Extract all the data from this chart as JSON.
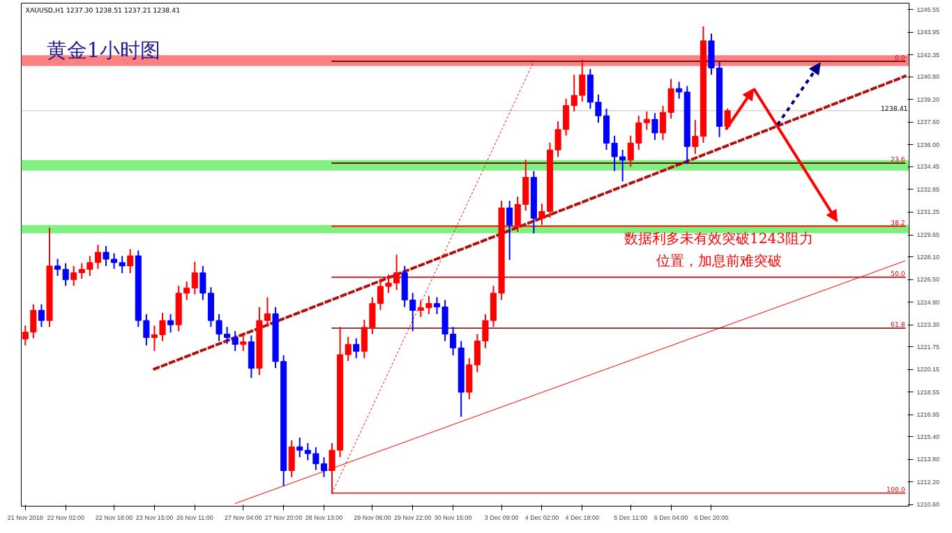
{
  "chart_data": {
    "type": "candlestick",
    "title": "黄金1小时图",
    "annotations": [
      "XAUUSD,H1  1237.30 1238.51 1237.21 1238.41",
      "数据利多未有效突破1243阻力",
      "位置，加息前难突破"
    ],
    "categories": [
      "21 Nov 2018",
      null,
      null,
      null,
      null,
      "22 Nov 02:00",
      null,
      null,
      null,
      null,
      null,
      "22 Nov 18:00",
      null,
      null,
      null,
      null,
      "23 Nov 15:00",
      null,
      null,
      null,
      null,
      "26 Nov 11:00",
      null,
      null,
      null,
      null,
      null,
      "27 Nov 04:00",
      null,
      null,
      null,
      null,
      "27 Nov 20:00",
      null,
      null,
      null,
      null,
      "28 Nov 13:00",
      null,
      null,
      null,
      null,
      null,
      "29 Nov 06:00",
      null,
      null,
      null,
      null,
      "29 Nov 22:00",
      null,
      null,
      null,
      null,
      "30 Nov 15:00",
      null,
      null,
      null,
      null,
      null,
      "3 Dec 09:00",
      null,
      null,
      null,
      null,
      "4 Dec 02:00",
      null,
      null,
      null,
      null,
      "4 Dec 18:00",
      null,
      null,
      null,
      null,
      null,
      "5 Dec 11:00",
      null,
      null,
      null,
      null,
      "6 Dec 04:00",
      null,
      null,
      null,
      null,
      "6 Dec 20:00",
      null,
      null,
      null,
      null,
      null,
      null,
      null,
      null,
      null,
      null,
      null,
      null,
      null,
      null,
      null,
      null,
      null,
      null,
      null,
      null,
      null,
      null,
      null,
      null
    ],
    "ohlc": [
      [
        1222.3,
        1223.2,
        1221.9,
        1222.78
      ],
      [
        1222.78,
        1224.7,
        1222.4,
        1224.32
      ],
      [
        1224.32,
        1224.7,
        1223.2,
        1223.6
      ],
      [
        1223.6,
        1230.1,
        1223.2,
        1227.45
      ],
      [
        1227.45,
        1227.9,
        1226.8,
        1227.21
      ],
      [
        1227.21,
        1227.6,
        1226.1,
        1226.49
      ],
      [
        1226.49,
        1227.4,
        1226.1,
        1226.97
      ],
      [
        1226.97,
        1227.6,
        1226.6,
        1227.21
      ],
      [
        1227.21,
        1228.1,
        1226.8,
        1227.69
      ],
      [
        1227.69,
        1228.9,
        1227.3,
        1228.42
      ],
      [
        1228.42,
        1228.8,
        1227.5,
        1227.93
      ],
      [
        1227.93,
        1228.3,
        1227.3,
        1227.69
      ],
      [
        1227.69,
        1228.1,
        1227.0,
        1227.45
      ],
      [
        1227.45,
        1228.6,
        1227.0,
        1228.17
      ],
      [
        1228.17,
        1228.5,
        1223.2,
        1223.6
      ],
      [
        1223.6,
        1224.0,
        1221.9,
        1222.4
      ],
      [
        1222.4,
        1223.2,
        1221.5,
        1222.6
      ],
      [
        1222.6,
        1224.1,
        1222.2,
        1223.6
      ],
      [
        1223.6,
        1224.0,
        1222.8,
        1223.3
      ],
      [
        1223.3,
        1226.0,
        1222.9,
        1225.53
      ],
      [
        1225.53,
        1226.3,
        1225.1,
        1225.9
      ],
      [
        1225.9,
        1227.7,
        1225.5,
        1226.97
      ],
      [
        1226.97,
        1227.4,
        1225.1,
        1225.53
      ],
      [
        1225.53,
        1225.9,
        1223.2,
        1223.6
      ],
      [
        1223.6,
        1224.0,
        1222.2,
        1222.64
      ],
      [
        1222.64,
        1223.1,
        1222.0,
        1222.4
      ],
      [
        1222.4,
        1222.8,
        1221.5,
        1221.92
      ],
      [
        1221.92,
        1222.6,
        1221.5,
        1222.1
      ],
      [
        1222.1,
        1222.5,
        1219.6,
        1220.23
      ],
      [
        1220.23,
        1224.5,
        1219.8,
        1223.6
      ],
      [
        1223.6,
        1225.2,
        1223.2,
        1224.08
      ],
      [
        1224.08,
        1224.5,
        1220.3,
        1220.71
      ],
      [
        1220.71,
        1221.1,
        1211.95,
        1213.01
      ],
      [
        1213.01,
        1215.1,
        1212.6,
        1214.69
      ],
      [
        1214.69,
        1215.3,
        1214.0,
        1214.45
      ],
      [
        1214.45,
        1214.9,
        1213.8,
        1214.21
      ],
      [
        1214.21,
        1214.6,
        1213.1,
        1213.49
      ],
      [
        1213.49,
        1213.9,
        1212.6,
        1213.01
      ],
      [
        1213.01,
        1214.9,
        1211.42,
        1214.45
      ],
      [
        1214.45,
        1223.1,
        1214.0,
        1221.19
      ],
      [
        1221.19,
        1222.4,
        1220.8,
        1221.92
      ],
      [
        1221.92,
        1222.3,
        1221.0,
        1221.43
      ],
      [
        1221.43,
        1223.6,
        1221.0,
        1223.12
      ],
      [
        1223.12,
        1225.2,
        1222.7,
        1224.8
      ],
      [
        1224.8,
        1226.5,
        1224.4,
        1226.01
      ],
      [
        1226.01,
        1226.8,
        1225.6,
        1226.25
      ],
      [
        1226.25,
        1228.2,
        1225.8,
        1226.97
      ],
      [
        1226.97,
        1227.4,
        1224.6,
        1225.05
      ],
      [
        1225.05,
        1225.5,
        1222.9,
        1224.32
      ],
      [
        1224.32,
        1225.0,
        1223.9,
        1224.5
      ],
      [
        1224.5,
        1225.3,
        1224.1,
        1224.8
      ],
      [
        1224.8,
        1225.2,
        1224.1,
        1224.56
      ],
      [
        1224.56,
        1225.0,
        1222.2,
        1222.64
      ],
      [
        1222.64,
        1223.1,
        1221.2,
        1221.67
      ],
      [
        1221.67,
        1222.1,
        1216.86,
        1218.54
      ],
      [
        1218.54,
        1220.9,
        1218.1,
        1220.47
      ],
      [
        1220.47,
        1222.6,
        1220.0,
        1222.16
      ],
      [
        1222.16,
        1224.0,
        1221.7,
        1223.6
      ],
      [
        1223.6,
        1226.0,
        1223.2,
        1225.53
      ],
      [
        1225.53,
        1232.0,
        1225.1,
        1231.55
      ],
      [
        1231.55,
        1232.0,
        1227.93,
        1230.34
      ],
      [
        1230.34,
        1232.3,
        1229.9,
        1231.79
      ],
      [
        1231.79,
        1234.9,
        1231.4,
        1233.71
      ],
      [
        1233.71,
        1234.1,
        1229.8,
        1230.82
      ],
      [
        1230.82,
        1231.8,
        1230.4,
        1231.3
      ],
      [
        1231.3,
        1236.1,
        1230.9,
        1235.64
      ],
      [
        1235.64,
        1237.6,
        1235.2,
        1237.08
      ],
      [
        1237.08,
        1239.2,
        1236.7,
        1238.77
      ],
      [
        1238.77,
        1240.9,
        1238.4,
        1239.49
      ],
      [
        1239.49,
        1241.95,
        1239.1,
        1240.93
      ],
      [
        1240.93,
        1241.3,
        1238.6,
        1239.01
      ],
      [
        1239.01,
        1239.5,
        1237.6,
        1238.05
      ],
      [
        1238.05,
        1238.5,
        1235.7,
        1236.12
      ],
      [
        1236.12,
        1236.6,
        1234.2,
        1235.16
      ],
      [
        1235.16,
        1235.6,
        1233.47,
        1234.92
      ],
      [
        1234.92,
        1236.6,
        1234.5,
        1236.12
      ],
      [
        1236.12,
        1238.0,
        1235.7,
        1237.56
      ],
      [
        1237.56,
        1238.3,
        1237.1,
        1237.8
      ],
      [
        1237.8,
        1238.2,
        1236.4,
        1236.84
      ],
      [
        1236.84,
        1238.7,
        1236.4,
        1238.29
      ],
      [
        1238.29,
        1240.6,
        1237.9,
        1239.97
      ],
      [
        1239.97,
        1240.4,
        1239.3,
        1239.73
      ],
      [
        1239.73,
        1240.1,
        1234.7,
        1235.88
      ],
      [
        1235.88,
        1237.7,
        1235.4,
        1236.6
      ],
      [
        1236.6,
        1244.3,
        1236.2,
        1243.34
      ],
      [
        1243.34,
        1243.8,
        1241.0,
        1241.42
      ],
      [
        1241.42,
        1241.8,
        1236.6,
        1237.3
      ],
      [
        1237.3,
        1238.51,
        1237.21,
        1238.41
      ],
      null,
      null,
      null,
      null,
      null,
      null,
      null,
      null,
      null,
      null,
      null,
      null,
      null,
      null,
      null,
      null,
      null,
      null,
      null,
      null,
      null,
      null
    ],
    "colors": [
      "#ff0000",
      "#ff0000",
      "#0000ff",
      "#ff0000",
      "#0000ff",
      "#0000ff",
      "#ff0000",
      "#ff0000",
      "#ff0000",
      "#ff0000",
      "#0000ff",
      "#0000ff",
      "#0000ff",
      "#ff0000",
      "#0000ff",
      "#0000ff",
      "#ff0000",
      "#ff0000",
      "#0000ff",
      "#ff0000",
      "#ff0000",
      "#ff0000",
      "#0000ff",
      "#0000ff",
      "#0000ff",
      "#0000ff",
      "#0000ff",
      "#ff0000",
      "#0000ff",
      "#ff0000",
      "#ff0000",
      "#0000ff",
      "#0000ff",
      "#ff0000",
      "#0000ff",
      "#0000ff",
      "#0000ff",
      "#0000ff",
      "#ff0000",
      "#ff0000",
      "#ff0000",
      "#0000ff",
      "#ff0000",
      "#ff0000",
      "#ff0000",
      "#ff0000",
      "#ff0000",
      "#0000ff",
      "#0000ff",
      "#ff0000",
      "#ff0000",
      "#0000ff",
      "#0000ff",
      "#0000ff",
      "#0000ff",
      "#ff0000",
      "#ff0000",
      "#ff0000",
      "#ff0000",
      "#ff0000",
      "#0000ff",
      "#ff0000",
      "#ff0000",
      "#0000ff",
      "#ff0000",
      "#ff0000",
      "#ff0000",
      "#ff0000",
      "#ff0000",
      "#ff0000",
      "#0000ff",
      "#0000ff",
      "#0000ff",
      "#0000ff",
      "#0000ff",
      "#ff0000",
      "#ff0000",
      "#ff0000",
      "#0000ff",
      "#ff0000",
      "#ff0000",
      "#0000ff",
      "#0000ff",
      "#ff0000",
      "#ff0000",
      "#0000ff",
      "#0000ff",
      "#ff0000",
      null,
      null,
      null,
      null,
      null,
      null,
      null,
      null,
      null,
      null,
      null,
      null,
      null,
      null,
      null,
      null,
      null,
      null,
      null,
      null,
      null,
      null
    ],
    "series": [
      {
        "type": "line",
        "color": "#b01010",
        "line_style": "dashed",
        "values": [
          null,
          null,
          null,
          null,
          null,
          null,
          null,
          null,
          null,
          null,
          null,
          null,
          null,
          null,
          null,
          null,
          1220.18,
          null,
          null,
          null,
          null,
          null,
          null,
          null,
          null,
          null,
          null,
          null,
          null,
          null,
          null,
          null,
          null,
          null,
          null,
          null,
          null,
          null,
          null,
          null,
          null,
          null,
          null,
          null,
          null,
          null,
          null,
          null,
          null,
          null,
          null,
          null,
          null,
          null,
          null,
          null,
          null,
          null,
          null,
          null,
          null,
          null,
          null,
          null,
          null,
          null,
          null,
          null,
          null,
          null,
          null,
          null,
          null,
          null,
          null,
          null,
          null,
          null,
          null,
          null,
          null,
          null,
          null,
          null,
          null,
          null,
          null,
          null,
          null,
          null,
          null,
          null,
          null,
          null,
          null,
          null,
          null,
          null,
          null,
          null,
          null,
          null,
          null,
          null,
          null,
          null,
          null,
          null,
          null,
          1240.84
        ]
      },
      {
        "type": "line",
        "color": "#ff0000",
        "line_style": "solid",
        "values": [
          null,
          null,
          null,
          null,
          null,
          null,
          null,
          null,
          null,
          null,
          null,
          null,
          null,
          null,
          null,
          null,
          null,
          null,
          null,
          null,
          null,
          null,
          null,
          null,
          null,
          null,
          1210.69,
          null,
          null,
          null,
          null,
          null,
          null,
          null,
          null,
          null,
          null,
          null,
          null,
          null,
          null,
          null,
          null,
          null,
          null,
          null,
          null,
          null,
          null,
          null,
          null,
          null,
          null,
          null,
          null,
          null,
          null,
          null,
          null,
          null,
          null,
          null,
          null,
          null,
          null,
          null,
          null,
          null,
          null,
          null,
          null,
          null,
          null,
          null,
          null,
          null,
          null,
          null,
          null,
          null,
          null,
          null,
          null,
          null,
          null,
          null,
          null,
          null,
          null,
          null,
          null,
          null,
          null,
          null,
          null,
          null,
          null,
          null,
          null,
          null,
          null,
          null,
          null,
          null,
          null,
          null,
          null,
          null,
          null,
          1227.81
        ]
      },
      {
        "type": "line",
        "color": "#ff0000",
        "line_style": "dotted",
        "values": [
          null,
          null,
          null,
          null,
          null,
          null,
          null,
          null,
          null,
          null,
          null,
          null,
          null,
          null,
          null,
          null,
          null,
          null,
          null,
          null,
          null,
          null,
          null,
          null,
          null,
          null,
          null,
          null,
          null,
          null,
          null,
          null,
          null,
          null,
          null,
          null,
          null,
          null,
          1211.42,
          null,
          null,
          null,
          null,
          null,
          null,
          null,
          null,
          null,
          null,
          null,
          null,
          null,
          null,
          null,
          null,
          null,
          null,
          null,
          null,
          null,
          null,
          null,
          null,
          1241.9,
          null,
          null,
          null,
          null,
          null,
          null,
          null,
          null,
          null,
          null,
          null,
          null,
          null,
          null,
          null,
          null,
          null,
          null,
          null,
          null,
          null,
          null,
          null,
          null,
          null,
          null,
          null,
          null,
          null,
          null,
          null,
          null,
          null,
          null,
          null,
          null,
          null,
          null,
          null,
          null,
          null,
          null,
          null,
          null,
          null,
          null
        ]
      },
      {
        "type": "line",
        "name": "0.0",
        "color": "#600000",
        "line_style": "solid",
        "values": [
          null,
          null,
          null,
          null,
          null,
          null,
          null,
          null,
          null,
          null,
          null,
          null,
          null,
          null,
          null,
          null,
          null,
          null,
          null,
          null,
          null,
          null,
          null,
          null,
          null,
          null,
          null,
          null,
          null,
          null,
          null,
          null,
          null,
          null,
          null,
          null,
          null,
          null,
          1241.9,
          null,
          null,
          null,
          null,
          null,
          null,
          null,
          null,
          null,
          null,
          null,
          null,
          null,
          null,
          null,
          null,
          null,
          null,
          null,
          null,
          null,
          null,
          null,
          null,
          null,
          null,
          null,
          null,
          null,
          null,
          null,
          null,
          null,
          null,
          null,
          null,
          null,
          null,
          null,
          null,
          null,
          null,
          null,
          null,
          null,
          null,
          null,
          null,
          null,
          null,
          null,
          null,
          null,
          null,
          null,
          null,
          null,
          null,
          null,
          null,
          null,
          null,
          null,
          null,
          null,
          null,
          null,
          null,
          null,
          null,
          1241.9
        ]
      },
      {
        "type": "line",
        "name": "23.6",
        "color": "#600000",
        "line_style": "solid",
        "values": [
          null,
          null,
          null,
          null,
          null,
          null,
          null,
          null,
          null,
          null,
          null,
          null,
          null,
          null,
          null,
          null,
          null,
          null,
          null,
          null,
          null,
          null,
          null,
          null,
          null,
          null,
          null,
          null,
          null,
          null,
          null,
          null,
          null,
          null,
          null,
          null,
          null,
          null,
          1234.71,
          null,
          null,
          null,
          null,
          null,
          null,
          null,
          null,
          null,
          null,
          null,
          null,
          null,
          null,
          null,
          null,
          null,
          null,
          null,
          null,
          null,
          null,
          null,
          null,
          null,
          null,
          null,
          null,
          null,
          null,
          null,
          null,
          null,
          null,
          null,
          null,
          null,
          null,
          null,
          null,
          null,
          null,
          null,
          null,
          null,
          null,
          null,
          null,
          null,
          null,
          null,
          null,
          null,
          null,
          null,
          null,
          null,
          null,
          null,
          null,
          null,
          null,
          null,
          null,
          null,
          null,
          null,
          null,
          null,
          null,
          1234.71
        ]
      },
      {
        "type": "line",
        "name": "38.2",
        "color": "#ff0000",
        "line_style": "solid",
        "values": [
          null,
          null,
          null,
          null,
          null,
          null,
          null,
          null,
          null,
          null,
          null,
          null,
          null,
          null,
          null,
          null,
          null,
          null,
          null,
          null,
          null,
          null,
          null,
          null,
          null,
          null,
          null,
          null,
          null,
          null,
          null,
          null,
          null,
          null,
          null,
          null,
          null,
          null,
          1230.26,
          null,
          null,
          null,
          null,
          null,
          null,
          null,
          null,
          null,
          null,
          null,
          null,
          null,
          null,
          null,
          null,
          null,
          null,
          null,
          null,
          null,
          null,
          null,
          null,
          null,
          null,
          null,
          null,
          null,
          null,
          null,
          null,
          null,
          null,
          null,
          null,
          null,
          null,
          null,
          null,
          null,
          null,
          null,
          null,
          null,
          null,
          null,
          null,
          null,
          null,
          null,
          null,
          null,
          null,
          null,
          null,
          null,
          null,
          null,
          null,
          null,
          null,
          null,
          null,
          null,
          null,
          null,
          null,
          null,
          null,
          1230.26
        ]
      },
      {
        "type": "line",
        "name": "50.0",
        "color": "#ff0000",
        "line_style": "solid",
        "values": [
          null,
          null,
          null,
          null,
          null,
          null,
          null,
          null,
          null,
          null,
          null,
          null,
          null,
          null,
          null,
          null,
          null,
          null,
          null,
          null,
          null,
          null,
          null,
          null,
          null,
          null,
          null,
          null,
          null,
          null,
          null,
          null,
          null,
          null,
          null,
          null,
          null,
          null,
          1226.66,
          null,
          null,
          null,
          null,
          null,
          null,
          null,
          null,
          null,
          null,
          null,
          null,
          null,
          null,
          null,
          null,
          null,
          null,
          null,
          null,
          null,
          null,
          null,
          null,
          null,
          null,
          null,
          null,
          null,
          null,
          null,
          null,
          null,
          null,
          null,
          null,
          null,
          null,
          null,
          null,
          null,
          null,
          null,
          null,
          null,
          null,
          null,
          null,
          null,
          null,
          null,
          null,
          null,
          null,
          null,
          null,
          null,
          null,
          null,
          null,
          null,
          null,
          null,
          null,
          null,
          null,
          null,
          null,
          null,
          null,
          1226.66
        ]
      },
      {
        "type": "line",
        "name": "61.8",
        "color": "#600000",
        "line_style": "solid",
        "values": [
          null,
          null,
          null,
          null,
          null,
          null,
          null,
          null,
          null,
          null,
          null,
          null,
          null,
          null,
          null,
          null,
          null,
          null,
          null,
          null,
          null,
          null,
          null,
          null,
          null,
          null,
          null,
          null,
          null,
          null,
          null,
          null,
          null,
          null,
          null,
          null,
          null,
          null,
          1223.06,
          null,
          null,
          null,
          null,
          null,
          null,
          null,
          null,
          null,
          null,
          null,
          null,
          null,
          null,
          null,
          null,
          null,
          null,
          null,
          null,
          null,
          null,
          null,
          null,
          null,
          null,
          null,
          null,
          null,
          null,
          null,
          null,
          null,
          null,
          null,
          null,
          null,
          null,
          null,
          null,
          null,
          null,
          null,
          null,
          null,
          null,
          null,
          null,
          null,
          null,
          null,
          null,
          null,
          null,
          null,
          null,
          null,
          null,
          null,
          null,
          null,
          null,
          null,
          null,
          null,
          null,
          null,
          null,
          null,
          null,
          1223.06
        ]
      },
      {
        "type": "line",
        "name": "100.0",
        "color": "#ff0000",
        "line_style": "solid",
        "values": [
          null,
          null,
          null,
          null,
          null,
          null,
          null,
          null,
          null,
          null,
          null,
          null,
          null,
          null,
          null,
          null,
          null,
          null,
          null,
          null,
          null,
          null,
          null,
          null,
          null,
          null,
          null,
          null,
          null,
          null,
          null,
          null,
          null,
          null,
          null,
          null,
          null,
          null,
          1211.42,
          null,
          null,
          null,
          null,
          null,
          null,
          null,
          null,
          null,
          null,
          null,
          null,
          null,
          null,
          null,
          null,
          null,
          null,
          null,
          null,
          null,
          null,
          null,
          null,
          null,
          null,
          null,
          null,
          null,
          null,
          null,
          null,
          null,
          null,
          null,
          null,
          null,
          null,
          null,
          null,
          null,
          null,
          null,
          null,
          null,
          null,
          null,
          null,
          null,
          null,
          null,
          null,
          null,
          null,
          null,
          null,
          null,
          null,
          null,
          null,
          null,
          null,
          null,
          null,
          null,
          null,
          null,
          null,
          null,
          null,
          1211.42
        ]
      }
    ],
    "bands": [
      {
        "axis": "y",
        "from": 1241.56,
        "to": 1242.33,
        "color": "#ff8080"
      },
      {
        "axis": "y",
        "from": 1234.19,
        "to": 1234.92,
        "color": "#80f080"
      },
      {
        "axis": "y",
        "from": 1229.76,
        "to": 1230.34,
        "color": "#80f080"
      }
    ],
    "ref_lines": [
      {
        "axis": "y",
        "value": 1238.41,
        "label": "1238.41",
        "color": "#c0c0c0"
      }
    ],
    "ylim": [
      1210.5,
      1246.0
    ],
    "yticks": [
      {
        "value": 1210.6,
        "label": "1210.60"
      },
      {
        "value": 1212.2,
        "label": "1212.20"
      },
      {
        "value": 1213.8,
        "label": "1213.80"
      },
      {
        "value": 1215.4,
        "label": "1215.40"
      },
      {
        "value": 1216.95,
        "label": "1216.95"
      },
      {
        "value": 1218.55,
        "label": "1218.55"
      },
      {
        "value": 1220.15,
        "label": "1220.15"
      },
      {
        "value": 1221.75,
        "label": "1221.75"
      },
      {
        "value": 1223.3,
        "label": "1223.30"
      },
      {
        "value": 1224.9,
        "label": "1224.90"
      },
      {
        "value": 1226.5,
        "label": "1226.50"
      },
      {
        "value": 1228.1,
        "label": "1228.10"
      },
      {
        "value": 1229.65,
        "label": "1229.65"
      },
      {
        "value": 1231.25,
        "label": "1231.25"
      },
      {
        "value": 1232.85,
        "label": "1232.85"
      },
      {
        "value": 1234.45,
        "label": "1234.45"
      },
      {
        "value": 1236.0,
        "label": "1236.00"
      },
      {
        "value": 1237.6,
        "label": "1237.60"
      },
      {
        "value": 1239.2,
        "label": "1239.20"
      },
      {
        "value": 1240.8,
        "label": "1240.80"
      },
      {
        "value": 1242.35,
        "label": "1242.35"
      },
      {
        "value": 1243.95,
        "label": "1243.95"
      },
      {
        "value": 1245.55,
        "label": "1245.55"
      }
    ]
  }
}
